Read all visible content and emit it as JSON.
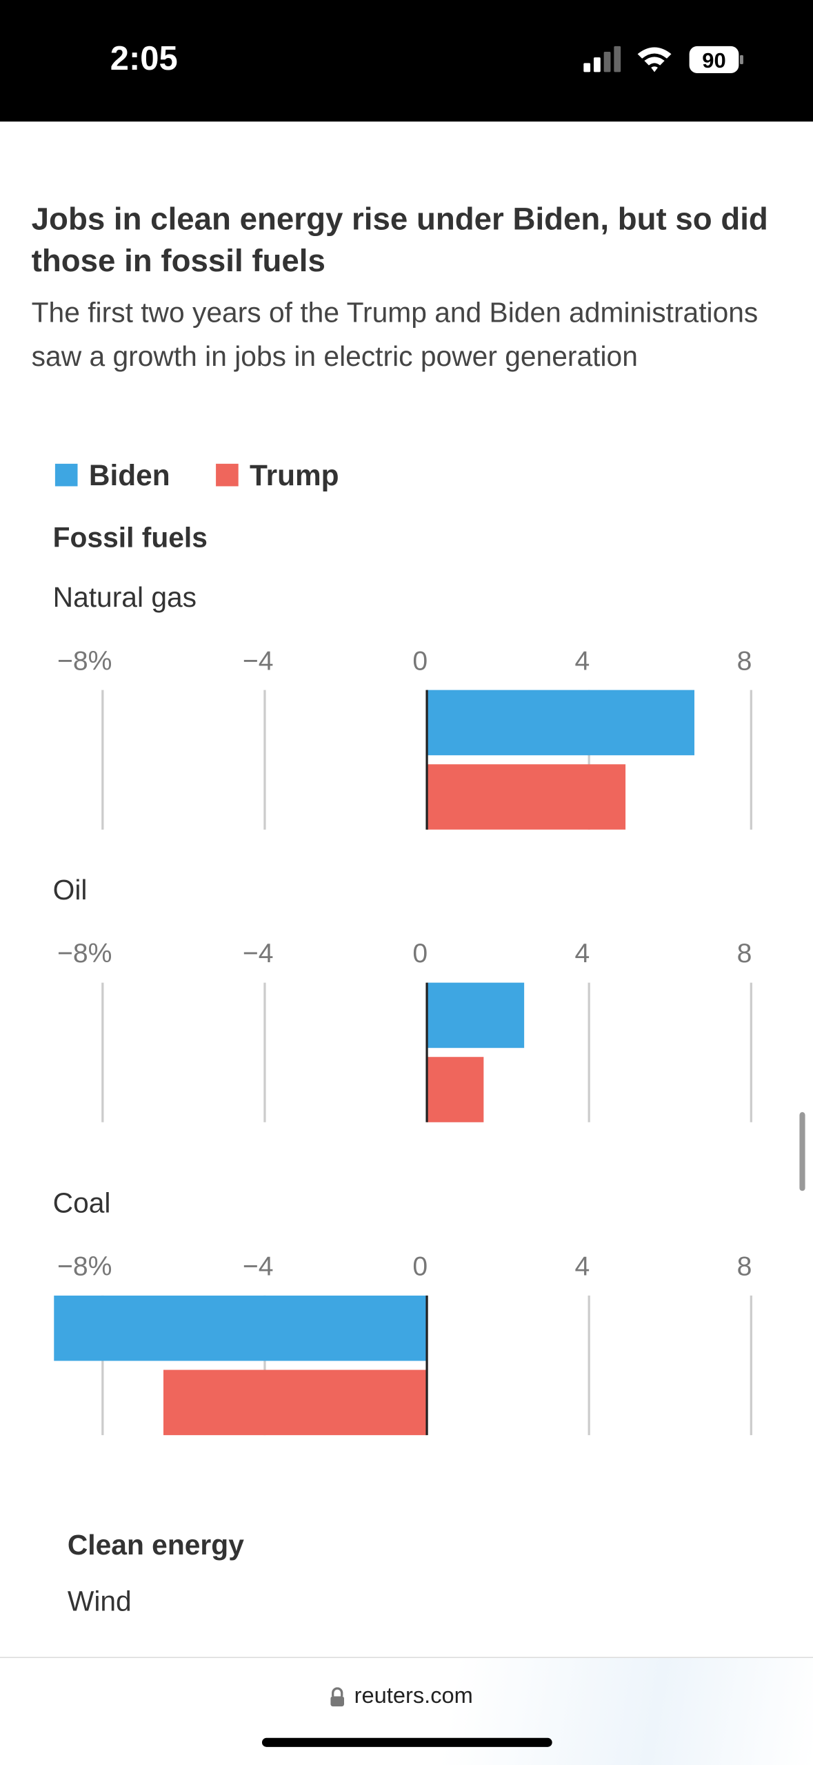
{
  "status": {
    "time": "2:05",
    "battery": "90"
  },
  "header": {
    "title": "Jobs in clean energy rise under Biden, but so did those in fossil fuels",
    "subtitle": "The first two years of the Trump and Biden administrations saw a growth in jobs in electric power generation"
  },
  "legend": [
    {
      "name": "Biden",
      "color": "#3ea6e2"
    },
    {
      "name": "Trump",
      "color": "#ef665c"
    }
  ],
  "fossil_heading": "Fossil fuels",
  "chart_data": [
    {
      "type": "bar",
      "orientation": "horizontal",
      "title": "Natural gas",
      "series": [
        {
          "color": "#3ea6e2",
          "values": [
            6.6
          ]
        },
        {
          "color": "#ef665c",
          "values": [
            4.9
          ]
        }
      ],
      "xlim": [
        -9.2,
        8
      ],
      "xticks": [
        {
          "value": -8,
          "label": "−8%"
        },
        {
          "value": -4,
          "label": "−4"
        },
        0,
        4,
        8
      ],
      "grid": true
    },
    {
      "type": "bar",
      "orientation": "horizontal",
      "title": "Oil",
      "series": [
        {
          "color": "#3ea6e2",
          "values": [
            2.4
          ]
        },
        {
          "color": "#ef665c",
          "values": [
            1.4
          ]
        }
      ],
      "xlim": [
        -9.2,
        8
      ],
      "xticks": [
        {
          "value": -8,
          "label": "−8%"
        },
        {
          "value": -4,
          "label": "−4"
        },
        0,
        4,
        8
      ],
      "grid": true
    },
    {
      "type": "bar",
      "orientation": "horizontal",
      "title": "Coal",
      "series": [
        {
          "color": "#3ea6e2",
          "values": [
            -9.2
          ]
        },
        {
          "color": "#ef665c",
          "values": [
            -6.5
          ]
        }
      ],
      "xlim": [
        -9.2,
        8
      ],
      "xticks": [
        {
          "value": -8,
          "label": "−8%"
        },
        {
          "value": -4,
          "label": "−4"
        },
        0,
        4,
        8
      ],
      "grid": true
    }
  ],
  "clean_energy": {
    "heading": "Clean energy",
    "first_chart_title": "Wind"
  },
  "footer": {
    "url": "reuters.com"
  }
}
